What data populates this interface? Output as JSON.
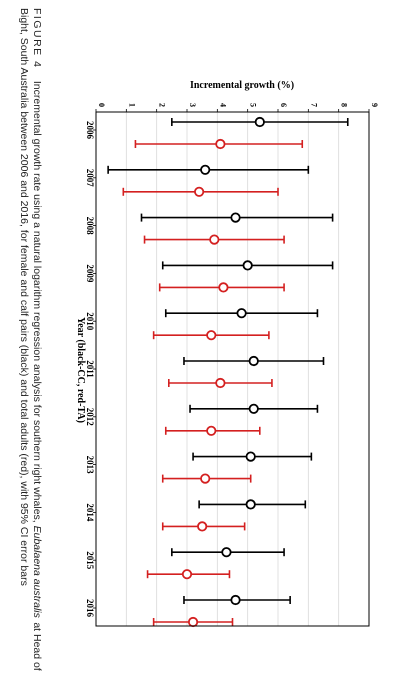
{
  "caption": {
    "label": "FIGURE 4",
    "line1_start": "Incremental growth rate using a natural logarithm regression analysis for southern right whales, ",
    "line1_species": "Eubalaena australis",
    "line1_end": " at Head of",
    "line2": "Bight, South Australia between 2006 and 2016, for female and calf pairs (black) and total adults (red), with 95% CI error bars"
  },
  "chart_data": {
    "type": "scatter",
    "orientation": "rotated 90° clockwise on the page",
    "title": "",
    "ylabel": "Incremental growth (%)",
    "xlabel": "Year (black-CC, red-TA)",
    "ylim": [
      0,
      9
    ],
    "yticks": [
      0,
      1,
      2,
      3,
      4,
      5,
      6,
      7,
      8,
      9
    ],
    "categories": [
      "2006",
      "2007",
      "2008",
      "2009",
      "2010",
      "2011",
      "2012",
      "2013",
      "2014",
      "2015",
      "2016"
    ],
    "grid": true,
    "legend": "none",
    "series": [
      {
        "name": "CC",
        "color": "#000000",
        "values": [
          5.4,
          3.6,
          4.6,
          5.0,
          4.8,
          5.2,
          5.2,
          5.1,
          5.1,
          4.3,
          4.6
        ],
        "ci_low": [
          2.5,
          0.4,
          1.5,
          2.2,
          2.3,
          2.9,
          3.1,
          3.2,
          3.4,
          2.5,
          2.9
        ],
        "ci_high": [
          8.3,
          7.0,
          7.8,
          7.8,
          7.3,
          7.5,
          7.3,
          7.1,
          6.9,
          6.2,
          6.4
        ]
      },
      {
        "name": "TA",
        "color": "#d42020",
        "values": [
          4.1,
          3.4,
          3.9,
          4.2,
          3.8,
          4.1,
          3.8,
          3.6,
          3.5,
          3.0,
          3.2
        ],
        "ci_low": [
          1.3,
          0.9,
          1.6,
          2.1,
          1.9,
          2.4,
          2.3,
          2.2,
          2.2,
          1.7,
          1.9
        ],
        "ci_high": [
          6.8,
          6.0,
          6.2,
          6.2,
          5.7,
          5.8,
          5.4,
          5.1,
          4.9,
          4.4,
          4.5
        ]
      }
    ]
  }
}
